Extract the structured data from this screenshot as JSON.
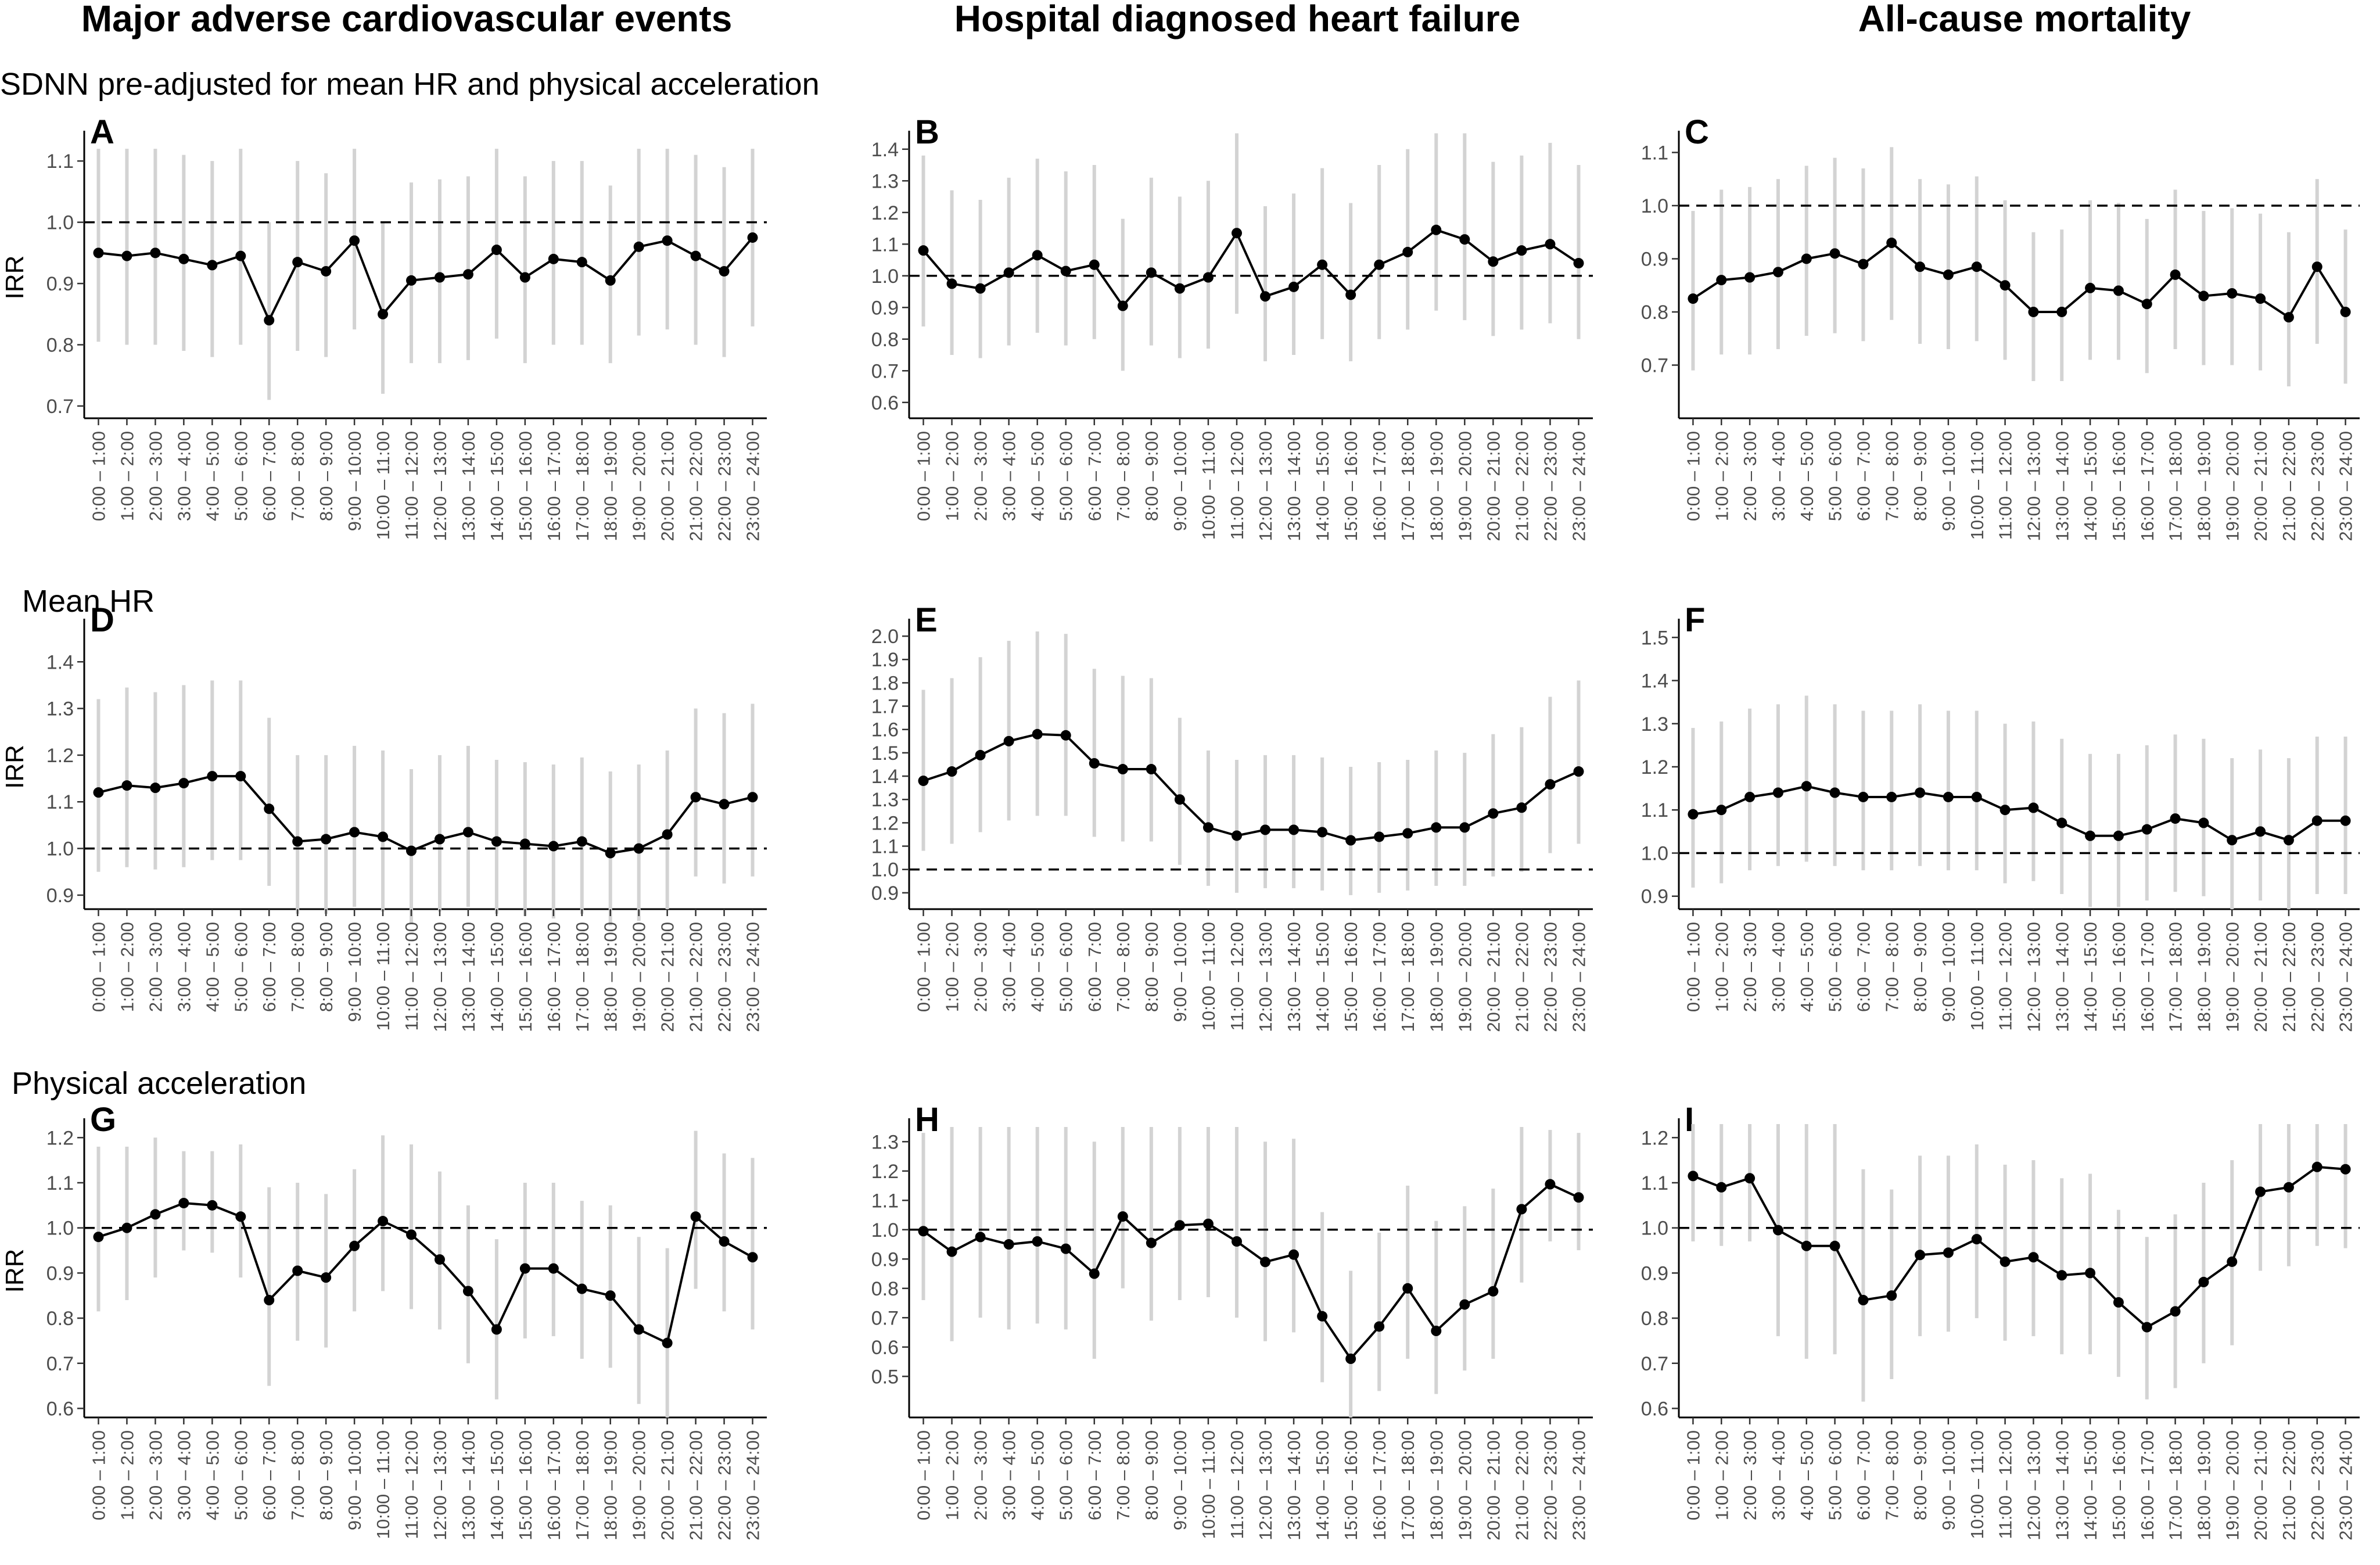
{
  "column_titles": [
    "Major adverse cardiovascular events",
    "Hospital diagnosed heart failure",
    "All-cause mortality"
  ],
  "row_titles": [
    "SDNN pre-adjusted for mean HR and physical acceleration",
    "Mean HR",
    "Physical acceleration"
  ],
  "colors": {
    "line": "#000000",
    "ci": "#d3d3d3",
    "reference": "#000000"
  },
  "hours": [
    "0:00 – 1:00",
    "1:00 – 2:00",
    "2:00 – 3:00",
    "3:00 – 4:00",
    "4:00 – 5:00",
    "5:00 – 6:00",
    "6:00 – 7:00",
    "7:00 – 8:00",
    "8:00 – 9:00",
    "9:00 – 10:00",
    "10:00 – 11:00",
    "11:00 – 12:00",
    "12:00 – 13:00",
    "13:00 – 14:00",
    "14:00 – 15:00",
    "15:00 – 16:00",
    "16:00 – 17:00",
    "17:00 – 18:00",
    "18:00 – 19:00",
    "19:00 – 20:00",
    "20:00 – 21:00",
    "21:00 – 22:00",
    "22:00 – 23:00",
    "23:00 – 24:00"
  ],
  "chart_data": [
    {
      "panel": "A",
      "type": "line",
      "ylabel": "IRR",
      "reference_line": 1.0,
      "yticks": [
        0.7,
        0.8,
        0.9,
        1.0,
        1.1
      ],
      "ylim": [
        0.68,
        1.14
      ],
      "values": [
        0.95,
        0.945,
        0.95,
        0.94,
        0.93,
        0.945,
        0.84,
        0.935,
        0.92,
        0.97,
        0.85,
        0.905,
        0.91,
        0.915,
        0.955,
        0.91,
        0.94,
        0.935,
        0.905,
        0.96,
        0.97,
        0.945,
        0.92,
        0.975
      ],
      "lower": [
        0.805,
        0.8,
        0.8,
        0.79,
        0.78,
        0.8,
        0.71,
        0.79,
        0.78,
        0.825,
        0.72,
        0.77,
        0.77,
        0.775,
        0.81,
        0.77,
        0.8,
        0.8,
        0.77,
        0.815,
        0.825,
        0.8,
        0.78,
        0.83
      ],
      "upper": [
        1.12,
        1.12,
        1.12,
        1.11,
        1.1,
        1.12,
        1.0,
        1.1,
        1.08,
        1.12,
        1.0,
        1.065,
        1.07,
        1.075,
        1.12,
        1.075,
        1.1,
        1.1,
        1.06,
        1.12,
        1.12,
        1.11,
        1.09,
        1.12
      ]
    },
    {
      "panel": "B",
      "type": "line",
      "ylabel": "",
      "reference_line": 1.0,
      "yticks": [
        0.6,
        0.7,
        0.8,
        0.9,
        1.0,
        1.1,
        1.2,
        1.3,
        1.4
      ],
      "ylim": [
        0.55,
        1.44
      ],
      "values": [
        1.08,
        0.975,
        0.96,
        1.01,
        1.065,
        1.015,
        1.035,
        0.905,
        1.01,
        0.96,
        0.995,
        1.135,
        0.935,
        0.965,
        1.035,
        0.94,
        1.035,
        1.075,
        1.145,
        1.115,
        1.045,
        1.08,
        1.1,
        1.04
      ],
      "lower": [
        0.84,
        0.75,
        0.74,
        0.78,
        0.82,
        0.78,
        0.8,
        0.7,
        0.78,
        0.74,
        0.77,
        0.88,
        0.73,
        0.75,
        0.8,
        0.73,
        0.8,
        0.83,
        0.89,
        0.86,
        0.81,
        0.83,
        0.85,
        0.8
      ],
      "upper": [
        1.38,
        1.27,
        1.24,
        1.31,
        1.37,
        1.33,
        1.35,
        1.18,
        1.31,
        1.25,
        1.3,
        1.45,
        1.22,
        1.26,
        1.34,
        1.23,
        1.35,
        1.4,
        1.45,
        1.45,
        1.36,
        1.38,
        1.42,
        1.35
      ]
    },
    {
      "panel": "C",
      "type": "line",
      "ylabel": "",
      "reference_line": 1.0,
      "yticks": [
        0.7,
        0.8,
        0.9,
        1.0,
        1.1
      ],
      "ylim": [
        0.6,
        1.13
      ],
      "values": [
        0.825,
        0.86,
        0.865,
        0.875,
        0.9,
        0.91,
        0.89,
        0.93,
        0.885,
        0.87,
        0.885,
        0.85,
        0.8,
        0.8,
        0.845,
        0.84,
        0.815,
        0.87,
        0.83,
        0.835,
        0.825,
        0.79,
        0.885,
        0.8
      ],
      "lower": [
        0.69,
        0.72,
        0.72,
        0.73,
        0.755,
        0.76,
        0.745,
        0.785,
        0.74,
        0.73,
        0.745,
        0.71,
        0.67,
        0.67,
        0.71,
        0.71,
        0.685,
        0.73,
        0.7,
        0.7,
        0.69,
        0.66,
        0.74,
        0.665
      ],
      "upper": [
        0.99,
        1.03,
        1.035,
        1.05,
        1.075,
        1.09,
        1.07,
        1.11,
        1.05,
        1.04,
        1.055,
        1.01,
        0.95,
        0.955,
        1.01,
        1.005,
        0.975,
        1.03,
        0.99,
        0.995,
        0.985,
        0.95,
        1.05,
        0.955
      ]
    },
    {
      "panel": "D",
      "type": "line",
      "ylabel": "IRR",
      "reference_line": 1.0,
      "yticks": [
        0.9,
        1.0,
        1.1,
        1.2,
        1.3,
        1.4
      ],
      "ylim": [
        0.87,
        1.48
      ],
      "values": [
        1.12,
        1.135,
        1.13,
        1.14,
        1.155,
        1.155,
        1.085,
        1.015,
        1.02,
        1.035,
        1.025,
        0.995,
        1.02,
        1.035,
        1.015,
        1.01,
        1.005,
        1.015,
        0.99,
        1.0,
        1.03,
        1.11,
        1.095,
        1.11
      ],
      "lower": [
        0.95,
        0.96,
        0.955,
        0.96,
        0.975,
        0.975,
        0.92,
        0.86,
        0.86,
        0.875,
        0.865,
        0.84,
        0.865,
        0.875,
        0.86,
        0.855,
        0.85,
        0.86,
        0.835,
        0.845,
        0.87,
        0.94,
        0.925,
        0.94
      ],
      "upper": [
        1.32,
        1.345,
        1.335,
        1.35,
        1.36,
        1.36,
        1.28,
        1.2,
        1.2,
        1.22,
        1.21,
        1.17,
        1.2,
        1.22,
        1.19,
        1.185,
        1.18,
        1.195,
        1.165,
        1.18,
        1.21,
        1.3,
        1.29,
        1.31
      ]
    },
    {
      "panel": "E",
      "type": "line",
      "ylabel": "",
      "reference_line": 1.0,
      "yticks": [
        0.9,
        1.0,
        1.1,
        1.2,
        1.3,
        1.4,
        1.5,
        1.6,
        1.7,
        1.8,
        1.9,
        2.0
      ],
      "ylim": [
        0.83,
        2.05
      ],
      "values": [
        1.38,
        1.42,
        1.49,
        1.55,
        1.58,
        1.575,
        1.455,
        1.43,
        1.43,
        1.3,
        1.18,
        1.145,
        1.17,
        1.17,
        1.16,
        1.125,
        1.14,
        1.155,
        1.18,
        1.18,
        1.24,
        1.265,
        1.365,
        1.42
      ],
      "lower": [
        1.08,
        1.11,
        1.16,
        1.21,
        1.23,
        1.23,
        1.14,
        1.12,
        1.12,
        1.02,
        0.93,
        0.9,
        0.92,
        0.92,
        0.91,
        0.89,
        0.9,
        0.91,
        0.93,
        0.93,
        0.97,
        0.99,
        1.07,
        1.11
      ],
      "upper": [
        1.77,
        1.82,
        1.91,
        1.98,
        2.02,
        2.01,
        1.86,
        1.83,
        1.82,
        1.65,
        1.51,
        1.47,
        1.49,
        1.49,
        1.48,
        1.44,
        1.46,
        1.47,
        1.51,
        1.5,
        1.58,
        1.61,
        1.74,
        1.81
      ]
    },
    {
      "panel": "F",
      "type": "line",
      "ylabel": "",
      "reference_line": 1.0,
      "yticks": [
        0.9,
        1.0,
        1.1,
        1.2,
        1.3,
        1.4,
        1.5
      ],
      "ylim": [
        0.87,
        1.53
      ],
      "values": [
        1.09,
        1.1,
        1.13,
        1.14,
        1.155,
        1.14,
        1.13,
        1.13,
        1.14,
        1.13,
        1.13,
        1.1,
        1.105,
        1.07,
        1.04,
        1.04,
        1.055,
        1.08,
        1.07,
        1.03,
        1.05,
        1.03,
        1.075,
        1.075
      ],
      "lower": [
        0.92,
        0.93,
        0.96,
        0.97,
        0.98,
        0.97,
        0.96,
        0.96,
        0.97,
        0.96,
        0.96,
        0.93,
        0.935,
        0.905,
        0.875,
        0.875,
        0.89,
        0.91,
        0.9,
        0.87,
        0.89,
        0.87,
        0.905,
        0.905
      ],
      "upper": [
        1.29,
        1.305,
        1.335,
        1.345,
        1.365,
        1.345,
        1.33,
        1.33,
        1.345,
        1.33,
        1.33,
        1.3,
        1.305,
        1.265,
        1.23,
        1.23,
        1.25,
        1.275,
        1.265,
        1.22,
        1.24,
        1.22,
        1.27,
        1.27
      ]
    },
    {
      "panel": "G",
      "type": "line",
      "ylabel": "IRR",
      "reference_line": 1.0,
      "yticks": [
        0.6,
        0.7,
        0.8,
        0.9,
        1.0,
        1.1,
        1.2
      ],
      "ylim": [
        0.58,
        1.23
      ],
      "values": [
        0.98,
        1.0,
        1.03,
        1.055,
        1.05,
        1.025,
        0.84,
        0.905,
        0.89,
        0.96,
        1.015,
        0.985,
        0.93,
        0.86,
        0.775,
        0.91,
        0.91,
        0.865,
        0.85,
        0.775,
        0.745,
        1.025,
        0.97,
        0.935
      ],
      "lower": [
        0.815,
        0.84,
        0.89,
        0.95,
        0.945,
        0.89,
        0.65,
        0.75,
        0.735,
        0.815,
        0.86,
        0.82,
        0.775,
        0.7,
        0.62,
        0.755,
        0.76,
        0.71,
        0.69,
        0.61,
        0.58,
        0.865,
        0.815,
        0.775
      ],
      "upper": [
        1.18,
        1.18,
        1.2,
        1.17,
        1.17,
        1.185,
        1.09,
        1.1,
        1.075,
        1.13,
        1.205,
        1.185,
        1.125,
        1.05,
        0.975,
        1.1,
        1.1,
        1.06,
        1.05,
        0.98,
        0.955,
        1.215,
        1.165,
        1.155
      ]
    },
    {
      "panel": "H",
      "type": "line",
      "ylabel": "",
      "reference_line": 1.0,
      "yticks": [
        0.5,
        0.6,
        0.7,
        0.8,
        0.9,
        1.0,
        1.1,
        1.2,
        1.3
      ],
      "ylim": [
        0.36,
        1.36
      ],
      "values": [
        0.995,
        0.925,
        0.975,
        0.95,
        0.96,
        0.935,
        0.85,
        1.045,
        0.955,
        1.015,
        1.02,
        0.96,
        0.89,
        0.915,
        0.705,
        0.56,
        0.67,
        0.8,
        0.655,
        0.745,
        0.79,
        1.07,
        1.155,
        1.11
      ],
      "lower": [
        0.76,
        0.62,
        0.7,
        0.66,
        0.68,
        0.66,
        0.56,
        0.8,
        0.69,
        0.76,
        0.77,
        0.7,
        0.62,
        0.65,
        0.48,
        0.36,
        0.45,
        0.56,
        0.44,
        0.52,
        0.56,
        0.82,
        0.96,
        0.93
      ],
      "upper": [
        1.33,
        1.35,
        1.35,
        1.35,
        1.35,
        1.35,
        1.3,
        1.35,
        1.35,
        1.35,
        1.35,
        1.35,
        1.3,
        1.31,
        1.06,
        0.86,
        0.99,
        1.15,
        1.03,
        1.08,
        1.14,
        1.35,
        1.34,
        1.33
      ]
    },
    {
      "panel": "I",
      "type": "line",
      "ylabel": "",
      "reference_line": 1.0,
      "yticks": [
        0.6,
        0.7,
        0.8,
        0.9,
        1.0,
        1.1,
        1.2
      ],
      "ylim": [
        0.58,
        1.23
      ],
      "values": [
        1.115,
        1.09,
        1.11,
        0.995,
        0.96,
        0.96,
        0.84,
        0.85,
        0.94,
        0.945,
        0.975,
        0.925,
        0.935,
        0.895,
        0.9,
        0.835,
        0.78,
        0.815,
        0.88,
        0.925,
        1.08,
        1.09,
        1.135,
        1.13
      ],
      "lower": [
        0.97,
        0.96,
        0.97,
        0.76,
        0.71,
        0.72,
        0.615,
        0.665,
        0.76,
        0.77,
        0.8,
        0.75,
        0.76,
        0.72,
        0.72,
        0.67,
        0.62,
        0.645,
        0.7,
        0.74,
        0.905,
        0.915,
        0.96,
        0.955
      ],
      "upper": [
        1.23,
        1.23,
        1.23,
        1.23,
        1.23,
        1.23,
        1.13,
        1.085,
        1.16,
        1.16,
        1.185,
        1.14,
        1.15,
        1.11,
        1.12,
        1.04,
        0.98,
        1.03,
        1.1,
        1.15,
        1.23,
        1.23,
        1.23,
        1.23
      ]
    }
  ]
}
